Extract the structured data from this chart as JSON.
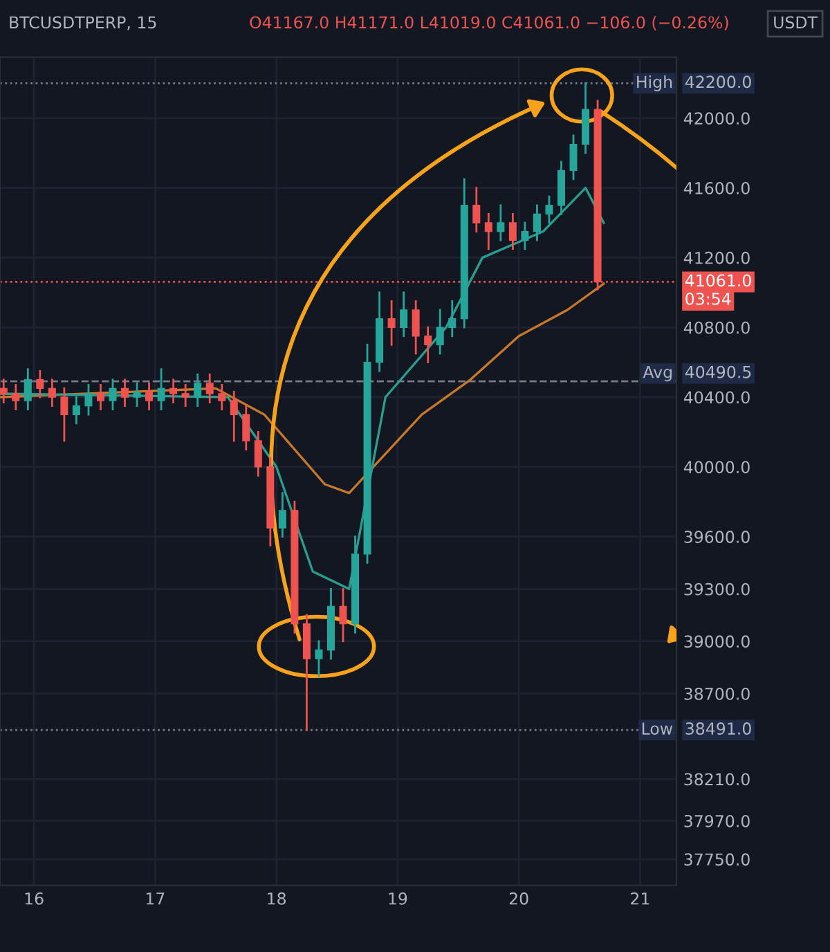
{
  "chart_data": {
    "type": "candlestick",
    "title": "BTCUSDTPERP, 15",
    "subtitle": "O41167.0 H41171.0 L41019.0 C41061.0 −106.0 (−0.26%)",
    "annotations": [
      "USDT",
      {
        "text": "High",
        "y": 42200
      },
      {
        "text": "Avg",
        "y": 40490.5
      },
      "03:54",
      {
        "text": "Low",
        "y": 38491
      }
    ],
    "x": [
      15.75,
      15.85,
      15.95,
      16.05,
      16.15,
      16.25,
      16.35,
      16.45,
      16.55,
      16.65,
      16.75,
      16.85,
      16.95,
      17.05,
      17.15,
      17.25,
      17.35,
      17.45,
      17.55,
      17.65,
      17.75,
      17.85,
      17.95,
      18.05,
      18.15,
      18.25,
      18.35,
      18.45,
      18.55,
      18.65,
      18.75,
      18.85,
      18.95,
      19.05,
      19.15,
      19.25,
      19.35,
      19.45,
      19.55,
      19.65,
      19.75,
      19.85,
      19.95,
      20.05,
      20.15,
      20.25,
      20.35,
      20.45,
      20.55,
      20.65
    ],
    "ohlc": [
      [
        40450,
        40500,
        40370,
        40420
      ],
      [
        40420,
        40470,
        40330,
        40380
      ],
      [
        40380,
        40560,
        40330,
        40500
      ],
      [
        40500,
        40550,
        40400,
        40450
      ],
      [
        40450,
        40500,
        40350,
        40400
      ],
      [
        40400,
        40450,
        40150,
        40300
      ],
      [
        40300,
        40400,
        40250,
        40350
      ],
      [
        40350,
        40470,
        40300,
        40420
      ],
      [
        40420,
        40470,
        40330,
        40380
      ],
      [
        40380,
        40500,
        40330,
        40450
      ],
      [
        40450,
        40500,
        40350,
        40400
      ],
      [
        40400,
        40480,
        40350,
        40430
      ],
      [
        40430,
        40480,
        40330,
        40380
      ],
      [
        40380,
        40560,
        40330,
        40450
      ],
      [
        40450,
        40500,
        40370,
        40420
      ],
      [
        40420,
        40470,
        40350,
        40400
      ],
      [
        40400,
        40530,
        40350,
        40480
      ],
      [
        40480,
        40530,
        40370,
        40420
      ],
      [
        40420,
        40470,
        40330,
        40380
      ],
      [
        40380,
        40430,
        40150,
        40300
      ],
      [
        40300,
        40350,
        40100,
        40150
      ],
      [
        40150,
        40200,
        39950,
        40000
      ],
      [
        40000,
        40050,
        39550,
        39650
      ],
      [
        39650,
        39850,
        39600,
        39750
      ],
      [
        39750,
        39800,
        39050,
        39100
      ],
      [
        39100,
        39150,
        38491,
        38900
      ],
      [
        38900,
        39000,
        38800,
        38950
      ],
      [
        38950,
        39300,
        38900,
        39200
      ],
      [
        39200,
        39300,
        39000,
        39100
      ],
      [
        39100,
        39600,
        39050,
        39500
      ],
      [
        39500,
        40700,
        39450,
        40600
      ],
      [
        40600,
        41000,
        40550,
        40850
      ],
      [
        40850,
        40950,
        40700,
        40800
      ],
      [
        40800,
        41000,
        40750,
        40900
      ],
      [
        40900,
        40950,
        40650,
        40750
      ],
      [
        40750,
        40800,
        40600,
        40700
      ],
      [
        40700,
        40900,
        40650,
        40800
      ],
      [
        40800,
        40950,
        40750,
        40850
      ],
      [
        40850,
        41650,
        40800,
        41500
      ],
      [
        41500,
        41600,
        41350,
        41400
      ],
      [
        41400,
        41450,
        41250,
        41350
      ],
      [
        41350,
        41500,
        41300,
        41400
      ],
      [
        41400,
        41450,
        41250,
        41300
      ],
      [
        41300,
        41400,
        41250,
        41350
      ],
      [
        41350,
        41500,
        41300,
        41450
      ],
      [
        41450,
        41550,
        41400,
        41500
      ],
      [
        41500,
        41750,
        41450,
        41700
      ],
      [
        41700,
        41900,
        41650,
        41850
      ],
      [
        41850,
        42200,
        41800,
        42050
      ],
      [
        42050,
        42100,
        41019,
        41061
      ]
    ],
    "colors": [
      "#ef5350",
      "#ef5350",
      "#26a69a",
      "#ef5350",
      "#ef5350",
      "#ef5350",
      "#26a69a",
      "#26a69a",
      "#ef5350",
      "#26a69a",
      "#ef5350",
      "#26a69a",
      "#ef5350",
      "#26a69a",
      "#ef5350",
      "#ef5350",
      "#26a69a",
      "#ef5350",
      "#ef5350",
      "#ef5350",
      "#ef5350",
      "#ef5350",
      "#ef5350",
      "#26a69a",
      "#ef5350",
      "#ef5350",
      "#26a69a",
      "#26a69a",
      "#ef5350",
      "#26a69a",
      "#26a69a",
      "#26a69a",
      "#ef5350",
      "#26a69a",
      "#ef5350",
      "#ef5350",
      "#26a69a",
      "#26a69a",
      "#26a69a",
      "#ef5350",
      "#ef5350",
      "#26a69a",
      "#ef5350",
      "#26a69a",
      "#26a69a",
      "#26a69a",
      "#26a69a",
      "#26a69a",
      "#26a69a",
      "#ef5350"
    ],
    "series": [
      {
        "type": "line",
        "color": "#c8782a",
        "x": [
          15.72,
          17.5,
          17.9,
          18.4,
          18.6,
          19.2,
          19.6,
          20.0,
          20.4,
          20.7
        ],
        "values": [
          40400,
          40450,
          40300,
          39900,
          39850,
          40300,
          40500,
          40750,
          40900,
          41050
        ]
      },
      {
        "type": "line",
        "color": "#2a9d8f",
        "x": [
          15.72,
          17.6,
          18.0,
          18.3,
          18.6,
          18.9,
          19.4,
          19.7,
          20.2,
          20.55,
          20.7
        ],
        "values": [
          40420,
          40400,
          40000,
          39400,
          39300,
          40400,
          40800,
          41200,
          41350,
          41600,
          41400
        ]
      }
    ],
    "xlim": [
      15.72,
      21.3
    ],
    "xticks": [
      16,
      17,
      18,
      19,
      20,
      21
    ],
    "ylim": [
      37600,
      42350
    ],
    "yticks": [
      {
        "value": 42000,
        "label": "42000.0"
      },
      {
        "value": 41600,
        "label": "41600.0"
      },
      {
        "value": 41200,
        "label": "41200.0"
      },
      {
        "value": 40800,
        "label": "40800.0"
      },
      {
        "value": 40400,
        "label": "40400.0"
      },
      {
        "value": 40000,
        "label": "40000.0"
      },
      {
        "value": 39600,
        "label": "39600.0"
      },
      {
        "value": 39300,
        "label": "39300.0"
      },
      {
        "value": 39000,
        "label": "39000.0"
      },
      {
        "value": 38700,
        "label": "38700.0"
      },
      {
        "value": 38210,
        "label": "38210.0"
      },
      {
        "value": 37970,
        "label": "37970.0"
      },
      {
        "value": 37750,
        "label": "37750.0"
      }
    ],
    "ref_lines": [
      {
        "axis": "y",
        "value": 42200,
        "label": "42200.0",
        "line_style": "dotted",
        "color": "#787b86"
      },
      {
        "axis": "y",
        "value": 40490.5,
        "label": "40490.5",
        "line_style": "dashed",
        "color": "#787b86"
      },
      {
        "axis": "y",
        "value": 41061,
        "label": "41061.0",
        "line_style": "dotted",
        "color": "#ef5350"
      },
      {
        "axis": "y",
        "value": 38491,
        "label": "38491.0",
        "line_style": "dotted",
        "color": "#787b86"
      }
    ],
    "grid": true
  }
}
